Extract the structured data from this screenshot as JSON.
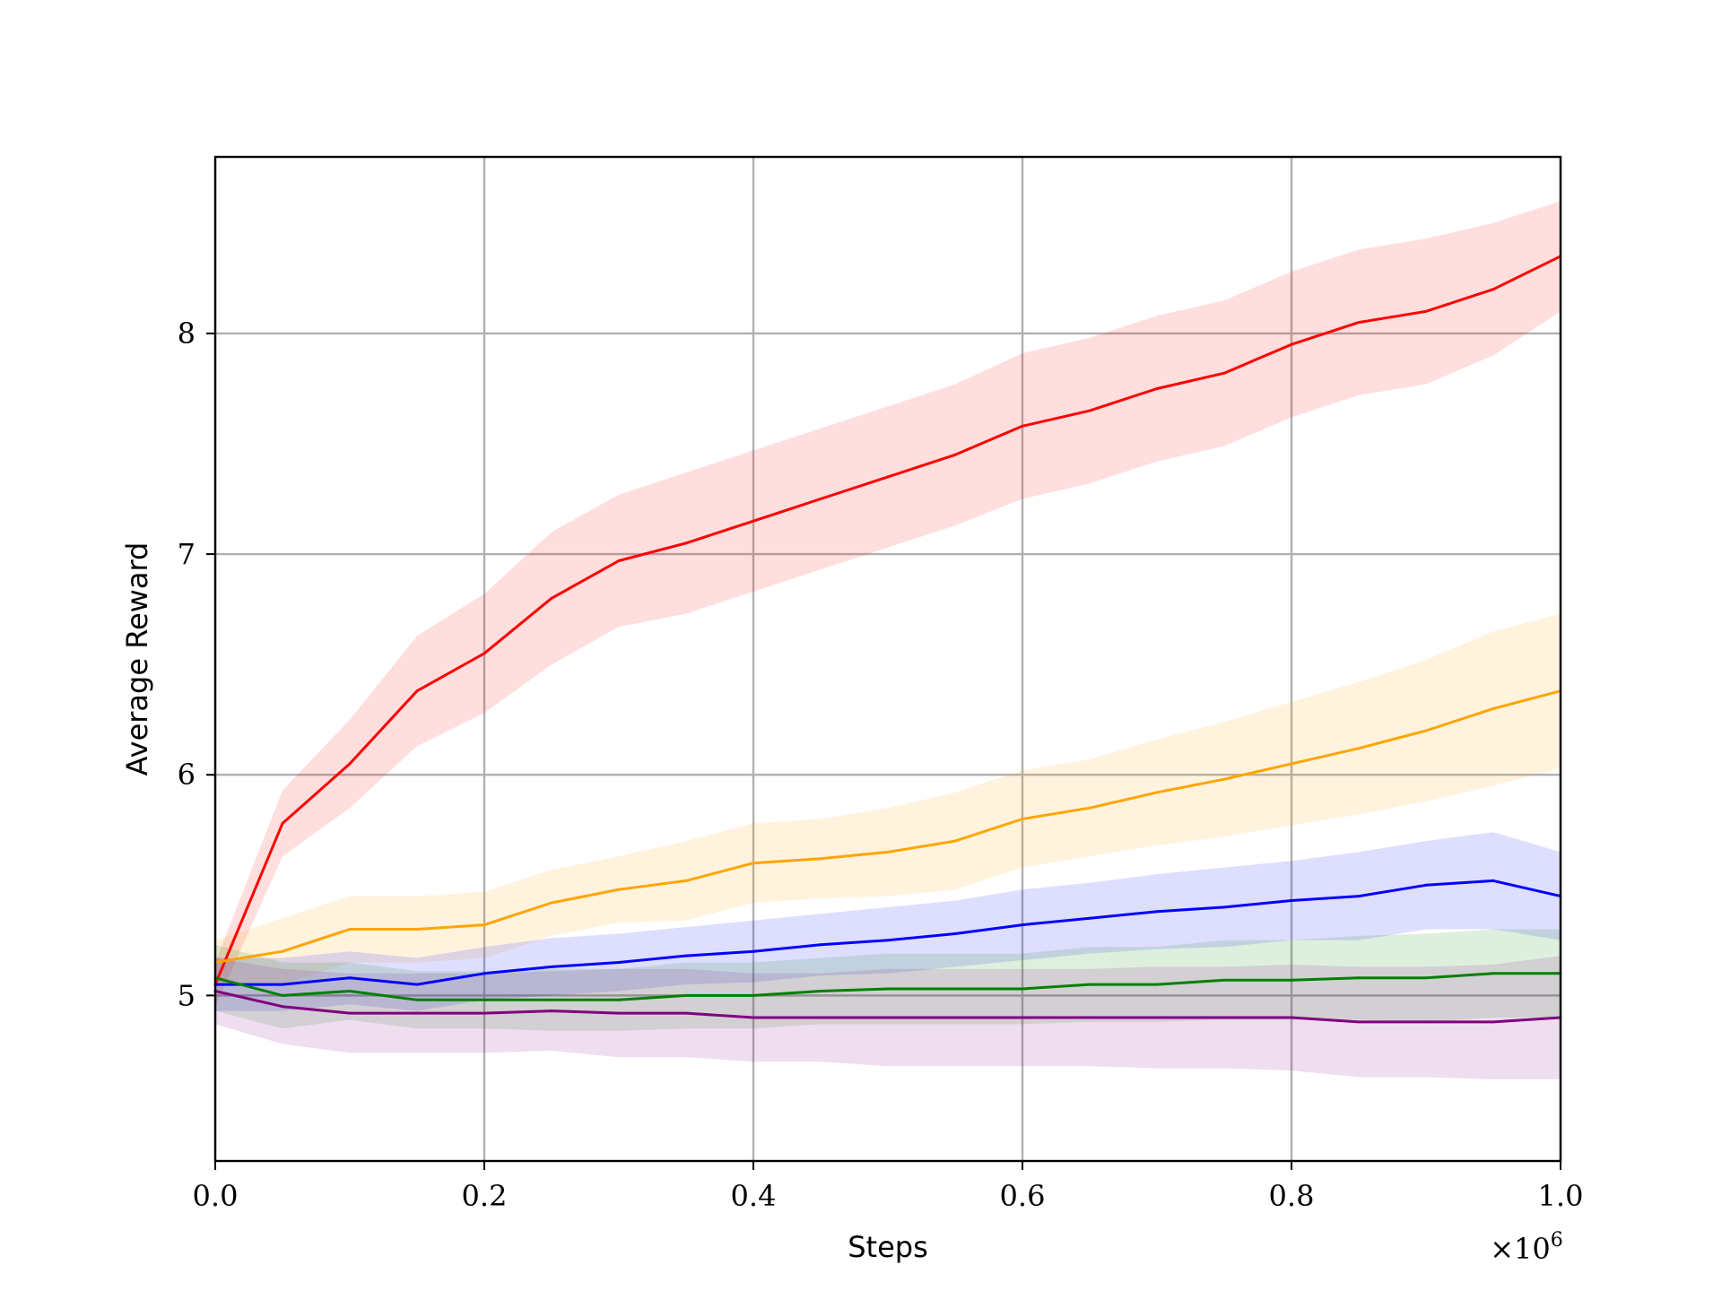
{
  "chart_data": {
    "type": "line",
    "xlabel": "Steps",
    "ylabel": "Average Reward",
    "x_multiplier_label": "×10",
    "x_multiplier_exponent": "6",
    "xlim": [
      0.0,
      1.0
    ],
    "ylim": [
      4.25,
      8.8
    ],
    "x_ticks": [
      0.0,
      0.2,
      0.4,
      0.6,
      0.8,
      1.0
    ],
    "x_tick_labels": [
      "0.0",
      "0.2",
      "0.4",
      "0.6",
      "0.8",
      "1.0"
    ],
    "y_ticks": [
      5,
      6,
      7,
      8
    ],
    "y_tick_labels": [
      "5",
      "6",
      "7",
      "8"
    ],
    "grid": true,
    "legend": "none",
    "band": "shaded variability band around each series",
    "x": [
      0.0,
      0.05,
      0.1,
      0.15,
      0.2,
      0.25,
      0.3,
      0.35,
      0.4,
      0.45,
      0.5,
      0.55,
      0.6,
      0.65,
      0.7,
      0.75,
      0.8,
      0.85,
      0.9,
      0.95,
      1.0
    ],
    "series": [
      {
        "color": "#ff0000",
        "values": [
          5.05,
          5.78,
          6.05,
          6.38,
          6.55,
          6.8,
          6.97,
          7.05,
          7.15,
          7.25,
          7.35,
          7.45,
          7.58,
          7.65,
          7.75,
          7.82,
          7.95,
          8.05,
          8.1,
          8.2,
          8.35
        ],
        "band_halfwidth": [
          0.1,
          0.15,
          0.2,
          0.25,
          0.27,
          0.3,
          0.3,
          0.32,
          0.32,
          0.32,
          0.32,
          0.32,
          0.33,
          0.33,
          0.33,
          0.33,
          0.33,
          0.33,
          0.33,
          0.3,
          0.25
        ]
      },
      {
        "color": "#ffa500",
        "values": [
          5.15,
          5.2,
          5.3,
          5.3,
          5.32,
          5.42,
          5.48,
          5.52,
          5.6,
          5.62,
          5.65,
          5.7,
          5.8,
          5.85,
          5.92,
          5.98,
          6.05,
          6.12,
          6.2,
          6.3,
          6.38
        ],
        "band_halfwidth": [
          0.1,
          0.15,
          0.15,
          0.15,
          0.15,
          0.15,
          0.15,
          0.18,
          0.18,
          0.18,
          0.2,
          0.22,
          0.22,
          0.22,
          0.24,
          0.26,
          0.28,
          0.3,
          0.32,
          0.35,
          0.35
        ]
      },
      {
        "color": "#0000ff",
        "values": [
          5.05,
          5.05,
          5.08,
          5.05,
          5.1,
          5.13,
          5.15,
          5.18,
          5.2,
          5.23,
          5.25,
          5.28,
          5.32,
          5.35,
          5.38,
          5.4,
          5.43,
          5.45,
          5.5,
          5.52,
          5.45
        ],
        "band_halfwidth": [
          0.12,
          0.12,
          0.12,
          0.12,
          0.12,
          0.13,
          0.13,
          0.13,
          0.14,
          0.14,
          0.15,
          0.15,
          0.16,
          0.16,
          0.17,
          0.18,
          0.18,
          0.2,
          0.2,
          0.22,
          0.2
        ]
      },
      {
        "color": "#008000",
        "values": [
          5.08,
          5.0,
          5.02,
          4.98,
          4.98,
          4.98,
          4.98,
          5.0,
          5.0,
          5.02,
          5.03,
          5.03,
          5.03,
          5.05,
          5.05,
          5.07,
          5.07,
          5.08,
          5.08,
          5.1,
          5.1
        ],
        "band_halfwidth": [
          0.15,
          0.15,
          0.13,
          0.13,
          0.13,
          0.14,
          0.14,
          0.15,
          0.15,
          0.15,
          0.16,
          0.16,
          0.16,
          0.17,
          0.17,
          0.18,
          0.18,
          0.19,
          0.2,
          0.2,
          0.2
        ]
      },
      {
        "color": "#800080",
        "values": [
          5.02,
          4.95,
          4.92,
          4.92,
          4.92,
          4.93,
          4.92,
          4.92,
          4.9,
          4.9,
          4.9,
          4.9,
          4.9,
          4.9,
          4.9,
          4.9,
          4.9,
          4.88,
          4.88,
          4.88,
          4.9
        ],
        "band_halfwidth": [
          0.15,
          0.17,
          0.18,
          0.18,
          0.18,
          0.18,
          0.2,
          0.2,
          0.2,
          0.2,
          0.22,
          0.22,
          0.22,
          0.22,
          0.23,
          0.23,
          0.24,
          0.25,
          0.25,
          0.26,
          0.28
        ]
      }
    ]
  }
}
